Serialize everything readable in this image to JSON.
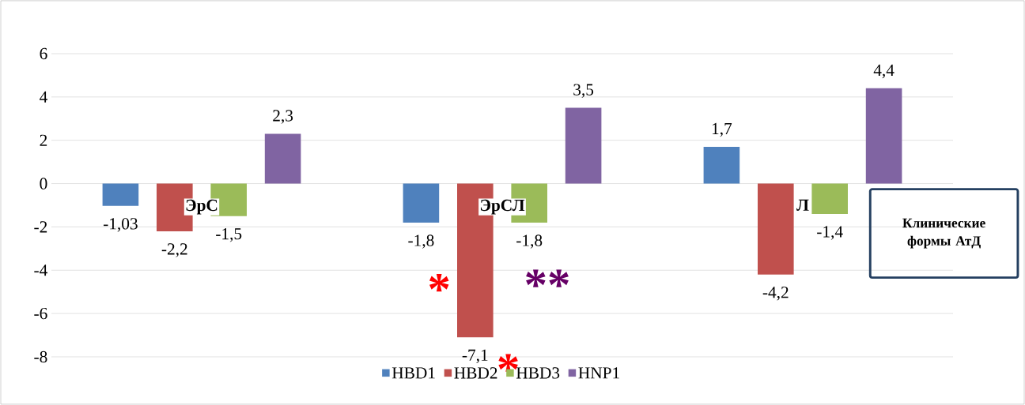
{
  "chart_data": {
    "type": "bar",
    "categories": [
      "ЭрС",
      "ЭрСЛ",
      "Л"
    ],
    "xlabel": "Клинические формы АтД",
    "series": [
      {
        "name": "HBD1",
        "color": "#4f81bd",
        "values": [
          -1.03,
          -1.8,
          1.7
        ],
        "value_labels": [
          "-1,03",
          "-1,8",
          "1,7"
        ]
      },
      {
        "name": "HBD2",
        "color": "#c0504d",
        "values": [
          -2.2,
          -7.1,
          -4.2
        ],
        "value_labels": [
          "-2,2",
          "-7,1",
          "-4,2"
        ]
      },
      {
        "name": "HBD3",
        "color": "#9bbb59",
        "values": [
          -1.5,
          -1.8,
          -1.4
        ],
        "value_labels": [
          "-1,5",
          "-1,8",
          "-1,4"
        ]
      },
      {
        "name": "HNP1",
        "color": "#8064a2",
        "values": [
          2.3,
          3.5,
          4.4
        ],
        "value_labels": [
          "2,3",
          "3,5",
          "4,4"
        ]
      }
    ],
    "ylim": [
      -8,
      6
    ],
    "yticks": [
      -8,
      -6,
      -4,
      -2,
      0,
      2,
      4,
      6
    ],
    "grid": "y",
    "legend": "bottom",
    "annotations": [
      "*",
      "**",
      "*"
    ]
  }
}
